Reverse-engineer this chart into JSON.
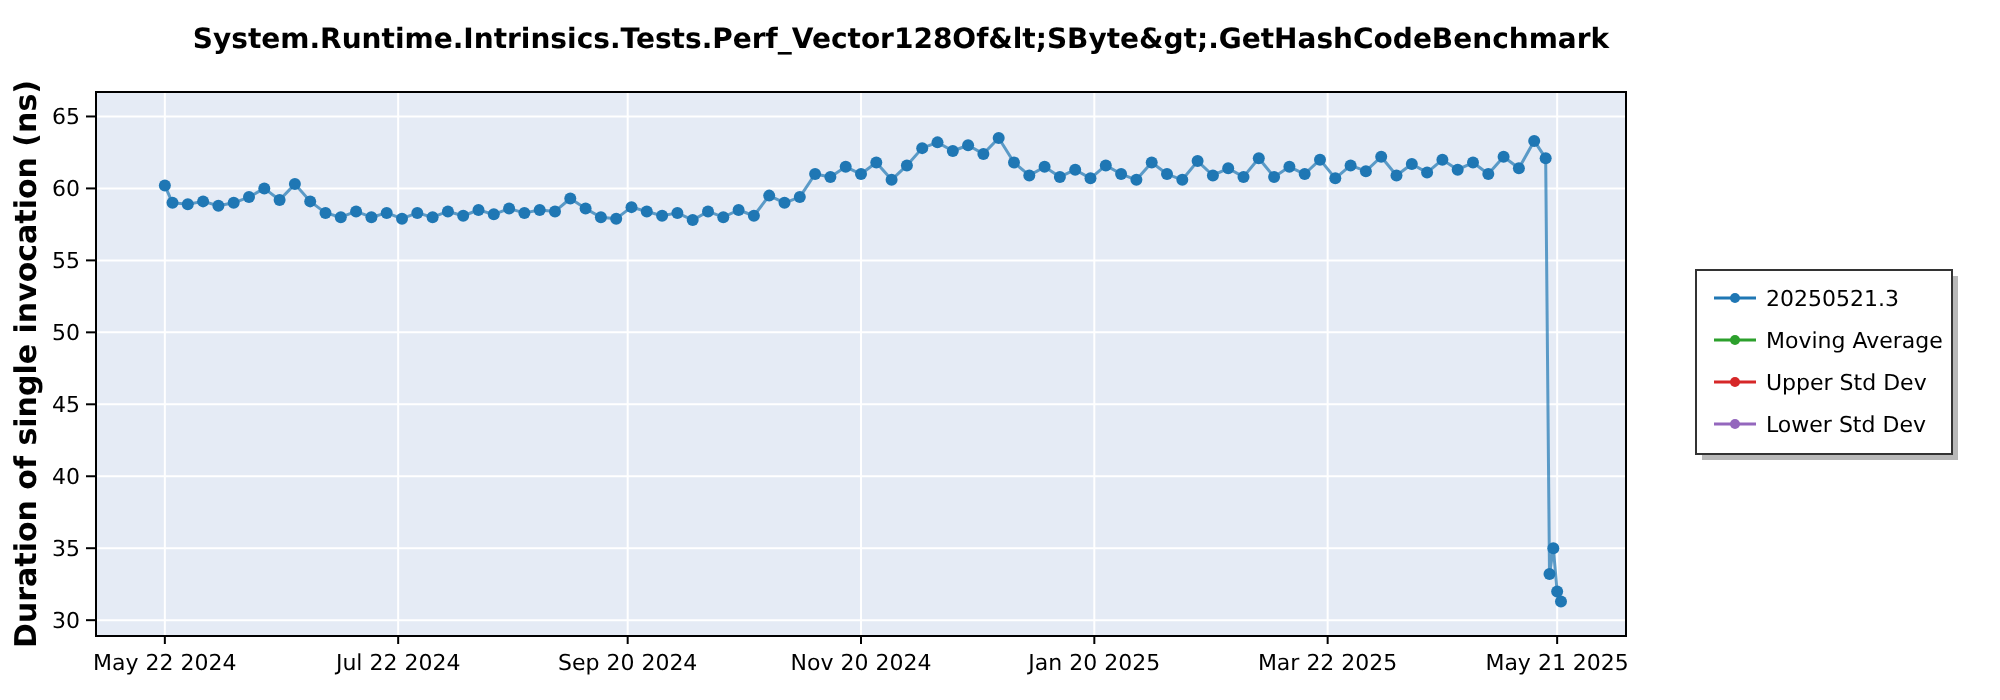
{
  "chart_data": {
    "type": "line",
    "title": "System.Runtime.Intrinsics.Tests.Perf_Vector128Of&lt;SByte&gt;.GetHashCodeBenchmark",
    "ylabel": "Duration of single invocation (ns)",
    "x": [
      "2024-05-22",
      "2024-05-24",
      "2024-05-28",
      "2024-06-01",
      "2024-06-05",
      "2024-06-09",
      "2024-06-13",
      "2024-06-17",
      "2024-06-21",
      "2024-06-25",
      "2024-06-29",
      "2024-07-03",
      "2024-07-07",
      "2024-07-11",
      "2024-07-15",
      "2024-07-19",
      "2024-07-23",
      "2024-07-27",
      "2024-07-31",
      "2024-08-04",
      "2024-08-08",
      "2024-08-12",
      "2024-08-16",
      "2024-08-20",
      "2024-08-24",
      "2024-08-28",
      "2024-09-01",
      "2024-09-05",
      "2024-09-09",
      "2024-09-13",
      "2024-09-17",
      "2024-09-21",
      "2024-09-25",
      "2024-09-29",
      "2024-10-03",
      "2024-10-07",
      "2024-10-11",
      "2024-10-15",
      "2024-10-19",
      "2024-10-23",
      "2024-10-27",
      "2024-10-31",
      "2024-11-04",
      "2024-11-08",
      "2024-11-12",
      "2024-11-16",
      "2024-11-20",
      "2024-11-24",
      "2024-11-28",
      "2024-12-02",
      "2024-12-06",
      "2024-12-10",
      "2024-12-14",
      "2024-12-18",
      "2024-12-22",
      "2024-12-26",
      "2024-12-30",
      "2025-01-03",
      "2025-01-07",
      "2025-01-11",
      "2025-01-15",
      "2025-01-19",
      "2025-01-23",
      "2025-01-27",
      "2025-01-31",
      "2025-02-04",
      "2025-02-08",
      "2025-02-12",
      "2025-02-16",
      "2025-02-20",
      "2025-02-24",
      "2025-02-28",
      "2025-03-04",
      "2025-03-08",
      "2025-03-12",
      "2025-03-16",
      "2025-03-20",
      "2025-03-24",
      "2025-03-28",
      "2025-04-01",
      "2025-04-05",
      "2025-04-09",
      "2025-04-13",
      "2025-04-17",
      "2025-04-21",
      "2025-04-25",
      "2025-04-29",
      "2025-05-03",
      "2025-05-07",
      "2025-05-11",
      "2025-05-15",
      "2025-05-18",
      "2025-05-19",
      "2025-05-20",
      "2025-05-21",
      "2025-05-22"
    ],
    "series": [
      {
        "name": "20250521.3",
        "color": "#1f77b4",
        "values": [
          60.2,
          59.0,
          58.9,
          59.1,
          58.8,
          59.0,
          59.4,
          60.0,
          59.2,
          60.3,
          59.1,
          58.3,
          58.0,
          58.4,
          58.0,
          58.3,
          57.9,
          58.3,
          58.0,
          58.4,
          58.1,
          58.5,
          58.2,
          58.6,
          58.3,
          58.5,
          58.4,
          59.3,
          58.6,
          58.0,
          57.9,
          58.7,
          58.4,
          58.1,
          58.3,
          57.8,
          58.4,
          58.0,
          58.5,
          58.1,
          59.5,
          59.0,
          59.4,
          61.0,
          60.8,
          61.5,
          61.0,
          61.8,
          60.6,
          61.6,
          62.8,
          63.2,
          62.6,
          63.0,
          62.4,
          63.5,
          61.8,
          60.9,
          61.5,
          60.8,
          61.3,
          60.7,
          61.6,
          61.0,
          60.6,
          61.8,
          61.0,
          60.6,
          61.9,
          60.9,
          61.4,
          60.8,
          62.1,
          60.8,
          61.5,
          61.0,
          62.0,
          60.7,
          61.6,
          61.2,
          62.2,
          60.9,
          61.7,
          61.1,
          62.0,
          61.3,
          61.8,
          61.0,
          62.2,
          61.4,
          63.3,
          62.1,
          33.2,
          35.0,
          32.0,
          31.3
        ]
      },
      {
        "name": "Moving Average",
        "color": "#2ca02c",
        "values": [
          null,
          null,
          null,
          null,
          null,
          null,
          null,
          null,
          null,
          null,
          null,
          null,
          null,
          null,
          null,
          null,
          null,
          null,
          null,
          null,
          null,
          null,
          null,
          null,
          null,
          null,
          null,
          null,
          null,
          null,
          null,
          null,
          null,
          null,
          null,
          null,
          null,
          null,
          null,
          null,
          null,
          null,
          null,
          null,
          null,
          null,
          null,
          null,
          null,
          null,
          null,
          null,
          null,
          null,
          null,
          null,
          null,
          null,
          null,
          null,
          null,
          null,
          null,
          null,
          null,
          null,
          null,
          null,
          null,
          null,
          null,
          null,
          null,
          null,
          null,
          null,
          null,
          null,
          null,
          null,
          null,
          null,
          null,
          null,
          null,
          null,
          null,
          null,
          null,
          null,
          null,
          null,
          null,
          null,
          null,
          null
        ]
      },
      {
        "name": "Upper Std Dev",
        "color": "#d62728",
        "values": [
          null,
          null,
          null,
          null,
          null,
          null,
          null,
          null,
          null,
          null,
          null,
          null,
          null,
          null,
          null,
          null,
          null,
          null,
          null,
          null,
          null,
          null,
          null,
          null,
          null,
          null,
          null,
          null,
          null,
          null,
          null,
          null,
          null,
          null,
          null,
          null,
          null,
          null,
          null,
          null,
          null,
          null,
          null,
          null,
          null,
          null,
          null,
          null,
          null,
          null,
          null,
          null,
          null,
          null,
          null,
          null,
          null,
          null,
          null,
          null,
          null,
          null,
          null,
          null,
          null,
          null,
          null,
          null,
          null,
          null,
          null,
          null,
          null,
          null,
          null,
          null,
          null,
          null,
          null,
          null,
          null,
          null,
          null,
          null,
          null,
          null,
          null,
          null,
          null,
          null,
          null,
          null,
          null,
          null,
          null,
          null
        ]
      },
      {
        "name": "Lower Std Dev",
        "color": "#9467bd",
        "values": [
          null,
          null,
          null,
          null,
          null,
          null,
          null,
          null,
          null,
          null,
          null,
          null,
          null,
          null,
          null,
          null,
          null,
          null,
          null,
          null,
          null,
          null,
          null,
          null,
          null,
          null,
          null,
          null,
          null,
          null,
          null,
          null,
          null,
          null,
          null,
          null,
          null,
          null,
          null,
          null,
          null,
          null,
          null,
          null,
          null,
          null,
          null,
          null,
          null,
          null,
          null,
          null,
          null,
          null,
          null,
          null,
          null,
          null,
          null,
          null,
          null,
          null,
          null,
          null,
          null,
          null,
          null,
          null,
          null,
          null,
          null,
          null,
          null,
          null,
          null,
          null,
          null,
          null,
          null,
          null,
          null,
          null,
          null,
          null,
          null,
          null,
          null,
          null,
          null,
          null,
          null,
          null,
          null,
          null,
          null,
          null
        ]
      }
    ],
    "xlim": [
      "2024-05-04",
      "2025-06-08"
    ],
    "xticks": [
      {
        "value": "2024-05-22",
        "label": "May 22 2024"
      },
      {
        "value": "2024-07-22",
        "label": "Jul 22 2024"
      },
      {
        "value": "2024-09-20",
        "label": "Sep 20 2024"
      },
      {
        "value": "2024-11-20",
        "label": "Nov 20 2024"
      },
      {
        "value": "2025-01-20",
        "label": "Jan 20 2025"
      },
      {
        "value": "2025-03-22",
        "label": "Mar 22 2025"
      },
      {
        "value": "2025-05-21",
        "label": "May 21 2025"
      }
    ],
    "ylim": [
      28.9,
      66.7
    ],
    "yticks": [
      30,
      35,
      40,
      45,
      50,
      55,
      60,
      65
    ],
    "grid": true,
    "legend": "right",
    "marker": "circle",
    "line_style": "solid"
  }
}
